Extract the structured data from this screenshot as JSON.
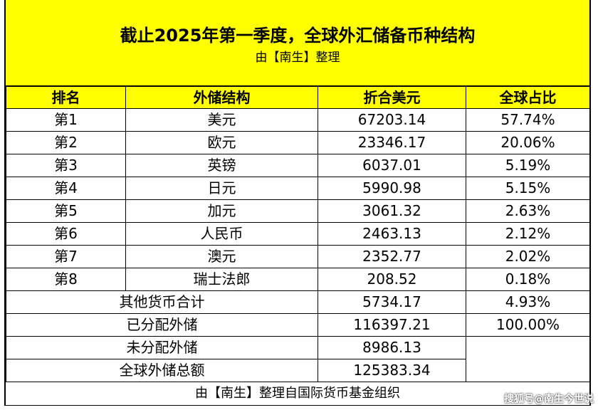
{
  "title": "截止2025年第一季度，全球外汇储备币种结构",
  "subtitle": "由【南生】整理",
  "headers": [
    "排名",
    "外储结构",
    "折合美元",
    "全球占比"
  ],
  "rows": [
    {
      "rank": "第1",
      "currency": "美元",
      "usd": "67203.14",
      "share": "57.74%"
    },
    {
      "rank": "第2",
      "currency": "欧元",
      "usd": "23346.17",
      "share": "20.06%"
    },
    {
      "rank": "第3",
      "currency": "英镑",
      "usd": "6037.01",
      "share": "5.19%"
    },
    {
      "rank": "第4",
      "currency": "日元",
      "usd": "5990.98",
      "share": "5.15%"
    },
    {
      "rank": "第5",
      "currency": "加元",
      "usd": "3061.32",
      "share": "2.63%"
    },
    {
      "rank": "第6",
      "currency": "人民币",
      "usd": "2463.13",
      "share": "2.12%"
    },
    {
      "rank": "第7",
      "currency": "澳元",
      "usd": "2352.77",
      "share": "2.02%"
    },
    {
      "rank": "第8",
      "currency": "瑞士法郎",
      "usd": "208.52",
      "share": "0.18%"
    }
  ],
  "summary": [
    {
      "label": "其他货币合计",
      "usd": "5734.17",
      "share": "4.93%"
    },
    {
      "label": "已分配外储",
      "usd": "116397.21",
      "share": "100.00%"
    },
    {
      "label": "未分配外储",
      "usd": "8986.13",
      "share": ""
    },
    {
      "label": "全球外储总额",
      "usd": "125383.34",
      "share": ""
    }
  ],
  "footer": "由【南生】整理自国际货币基金组织",
  "watermark": "搜狐号@南生今世说"
}
